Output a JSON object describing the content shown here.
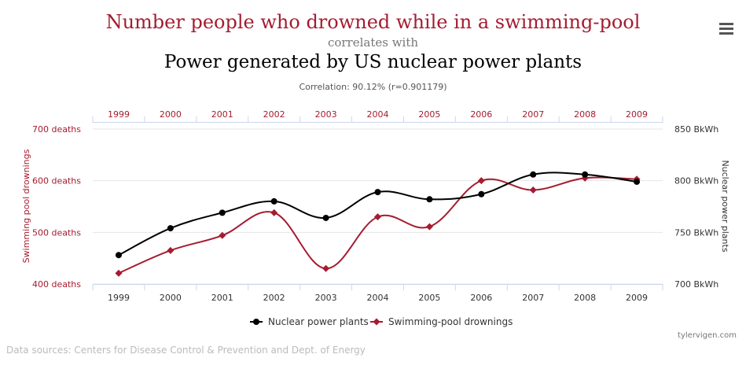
{
  "header": {
    "title": "Number people who drowned while in a swimming-pool",
    "correlates_label": "correlates with",
    "subtitle": "Power generated by US nuclear power plants",
    "correlation": "Correlation: 90.12% (r=0.901179)"
  },
  "menu": {
    "icon": "hamburger-menu-icon"
  },
  "footer": {
    "credit": "tylervigen.com",
    "sources": "Data sources: Centers for Disease Control & Prevention and Dept. of Energy"
  },
  "colors": {
    "red": "#a51c30",
    "black": "#000000",
    "grid": "#e6e6e6"
  },
  "chart_data": {
    "type": "line",
    "x": [
      "1999",
      "2000",
      "2001",
      "2002",
      "2003",
      "2004",
      "2005",
      "2006",
      "2007",
      "2008",
      "2009"
    ],
    "left_axis": {
      "label": "Swimming pool drownings",
      "range": [
        400,
        700
      ],
      "ticks": [
        400,
        500,
        600,
        700
      ],
      "tick_labels": [
        "400 deaths",
        "500 deaths",
        "600 deaths",
        "700 deaths"
      ]
    },
    "right_axis": {
      "label": "Nuclear power plants",
      "range": [
        700,
        850
      ],
      "ticks": [
        700,
        750,
        800,
        850
      ],
      "tick_labels": [
        "700 BkWh",
        "750 BkWh",
        "800 BkWh",
        "850 BkWh"
      ]
    },
    "series": [
      {
        "name": "Nuclear power plants",
        "axis": "right",
        "color": "#000000",
        "marker": "circle",
        "values": [
          728,
          754,
          769,
          780,
          764,
          789,
          782,
          787,
          806,
          806,
          799
        ]
      },
      {
        "name": "Swimming-pool drownings",
        "axis": "left",
        "color": "#a51c30",
        "marker": "diamond",
        "values": [
          421,
          465,
          494,
          538,
          430,
          530,
          511,
          600,
          582,
          605,
          603
        ]
      }
    ],
    "legend": "bottom-center",
    "grid": true
  }
}
